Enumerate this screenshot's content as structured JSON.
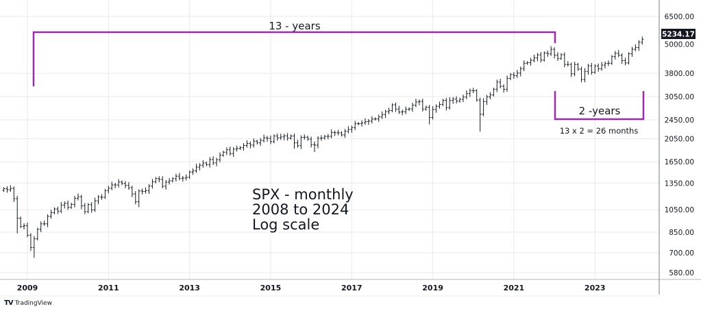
{
  "chart_data": {
    "type": "ohlc",
    "title": "SPX - monthly",
    "annotation_lines": [
      "SPX - monthly",
      "2008 to 2024",
      "Log scale"
    ],
    "y_scale": "log",
    "ylim": [
      560,
      6900
    ],
    "y_ticks": [
      6500,
      5000,
      3800,
      3050,
      2450,
      2050,
      1650,
      1350,
      1050,
      850,
      700,
      580
    ],
    "y_tick_labels": [
      "6500.00",
      "5000.00",
      "3800.00",
      "3050.00",
      "2450.00",
      "2050.00",
      "1650.00",
      "1350.00",
      "1050.00",
      "850.00",
      "700.00",
      "580.00"
    ],
    "x_ticks": [
      "2009",
      "2011",
      "2013",
      "2015",
      "2017",
      "2019",
      "2021",
      "2023"
    ],
    "start": "2008-06",
    "closes": [
      1280,
      1267,
      1283,
      1166,
      969,
      896,
      903,
      826,
      735,
      798,
      873,
      919,
      919,
      987,
      1021,
      1057,
      1036,
      1096,
      1115,
      1074,
      1104,
      1169,
      1187,
      1089,
      1031,
      1102,
      1049,
      1141,
      1183,
      1181,
      1258,
      1286,
      1327,
      1326,
      1364,
      1345,
      1321,
      1292,
      1219,
      1131,
      1253,
      1247,
      1258,
      1312,
      1366,
      1408,
      1398,
      1310,
      1362,
      1379,
      1407,
      1441,
      1412,
      1416,
      1426,
      1498,
      1515,
      1569,
      1598,
      1631,
      1606,
      1686,
      1633,
      1682,
      1757,
      1806,
      1848,
      1783,
      1859,
      1872,
      1884,
      1924,
      1960,
      1931,
      2003,
      1972,
      2018,
      2068,
      2059,
      1995,
      2105,
      2068,
      2086,
      2107,
      2063,
      2104,
      1972,
      1920,
      2079,
      2080,
      2044,
      1940,
      1932,
      2060,
      2065,
      2097,
      2099,
      2174,
      2171,
      2168,
      2126,
      2199,
      2239,
      2279,
      2364,
      2363,
      2384,
      2412,
      2423,
      2470,
      2472,
      2519,
      2575,
      2648,
      2674,
      2824,
      2714,
      2641,
      2648,
      2705,
      2718,
      2816,
      2902,
      2914,
      2712,
      2760,
      2507,
      2704,
      2784,
      2834,
      2946,
      2752,
      2942,
      2980,
      2926,
      2977,
      3038,
      3141,
      3231,
      3226,
      2954,
      2585,
      2912,
      3044,
      3100,
      3271,
      3500,
      3363,
      3270,
      3622,
      3756,
      3714,
      3811,
      3973,
      4181,
      4204,
      4298,
      4395,
      4523,
      4308,
      4605,
      4567,
      4766,
      4516,
      4374,
      4530,
      4132,
      4132,
      3785,
      4130,
      3955,
      3586,
      3872,
      4080,
      3840,
      4077,
      3970,
      4109,
      4169,
      4180,
      4450,
      4589,
      4508,
      4288,
      4194,
      4568,
      4770,
      4846,
      5096,
      5234
    ],
    "notable_lows": {
      "2008-10": 840,
      "2009-03": 667,
      "2011-10": 1075,
      "2015-08": 1867,
      "2016-02": 1810,
      "2018-12": 2347,
      "2020-03": 2192,
      "2022-10": 3492
    },
    "last_price_label": "5234.17",
    "last_price": 5234.17
  },
  "annotations": {
    "bracket_13": "13 - years",
    "bracket_2": "2 -years",
    "calc": "13 x 2 = 26 months"
  },
  "colors": {
    "bars": "#131722",
    "bracket": "#9c27b0",
    "grid": "#e9e9ec"
  },
  "footer": {
    "brand": "TradingView",
    "logo": "TV"
  }
}
